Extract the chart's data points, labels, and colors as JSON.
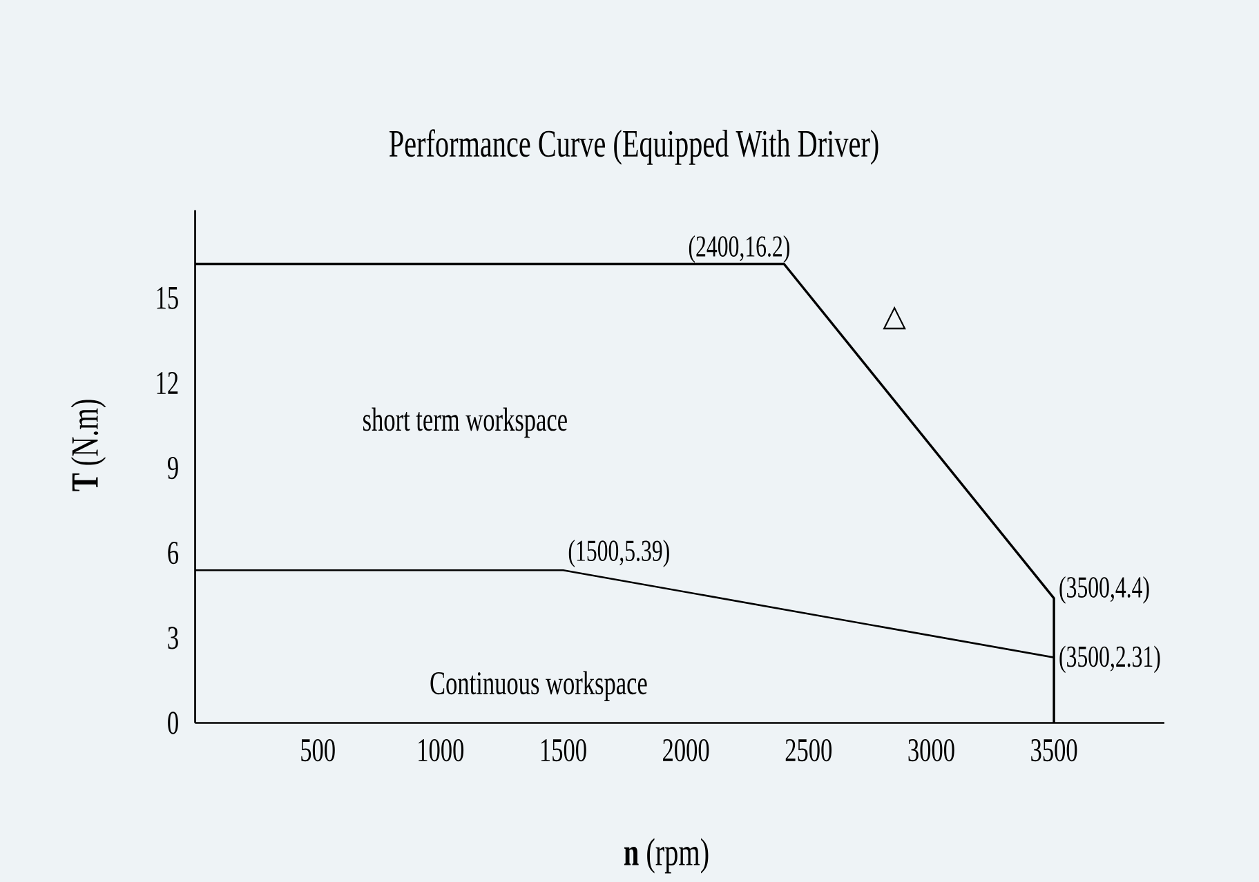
{
  "chart_data": {
    "type": "line",
    "title": "Performance Curve (Equipped With Driver)",
    "xlabel": "**n** (rpm)",
    "ylabel": "**T** (N.m)",
    "xlim": [
      0,
      3950
    ],
    "ylim": [
      0,
      18.1
    ],
    "xticks": [
      500,
      1000,
      1500,
      2000,
      2500,
      3000,
      3500
    ],
    "yticks": [
      0,
      3,
      6,
      9,
      12,
      15
    ],
    "grid": false,
    "marker": "none",
    "line_style": "solid",
    "series": [
      {
        "color": "#000000",
        "x": [
          0,
          2400,
          3500,
          3500
        ],
        "values": [
          16.2,
          16.2,
          4.4,
          0
        ]
      },
      {
        "color": "#000000",
        "x": [
          0,
          1500,
          3500
        ],
        "values": [
          5.39,
          5.39,
          2.31
        ]
      }
    ],
    "annotations": [
      "short term workspace",
      "Continuous workspace",
      "△",
      {
        "text": "(2400,16.2)",
        "x": 2400,
        "y": 16.2
      },
      {
        "text": "(1500,5.39)",
        "x": 1500,
        "y": 5.39
      },
      {
        "text": "(3500,4.4)",
        "x": 3500,
        "y": 4.4
      },
      {
        "text": "(3500,2.31)",
        "x": 3500,
        "y": 2.31
      }
    ]
  }
}
